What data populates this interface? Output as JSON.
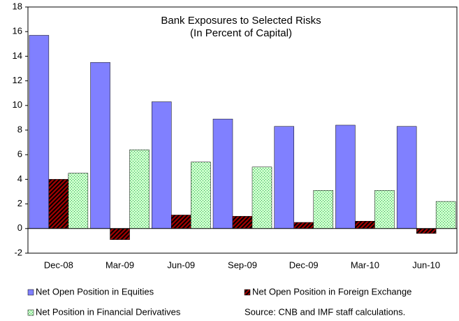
{
  "chart_data": {
    "type": "bar",
    "title": "Bank Exposures to Selected Risks",
    "subtitle": "(In Percent of Capital)",
    "categories": [
      "Dec-08",
      "Mar-09",
      "Jun-09",
      "Sep-09",
      "Dec-09",
      "Mar-10",
      "Jun-10"
    ],
    "series": [
      {
        "name": "Net Open Position in Equities",
        "color": "#8080ff",
        "pattern": "solid",
        "values": [
          15.7,
          13.5,
          10.3,
          8.9,
          8.3,
          8.4,
          8.3
        ]
      },
      {
        "name": "Net Open Position in Foreign Exchange",
        "color": "#a00000",
        "pattern": "hatch",
        "values": [
          4.0,
          -0.9,
          1.1,
          1.0,
          0.5,
          0.6,
          -0.4
        ]
      },
      {
        "name": "Net Position in Financial Derivatives",
        "color": "#ccffcc",
        "pattern": "dots",
        "values": [
          4.5,
          6.4,
          5.4,
          5.0,
          3.1,
          3.1,
          2.2
        ]
      }
    ],
    "ylim": [
      -2,
      18
    ],
    "yticks": [
      -2,
      0,
      2,
      4,
      6,
      8,
      10,
      12,
      14,
      16,
      18
    ],
    "grid": false,
    "note": "Source: CNB and IMF staff calculations."
  }
}
